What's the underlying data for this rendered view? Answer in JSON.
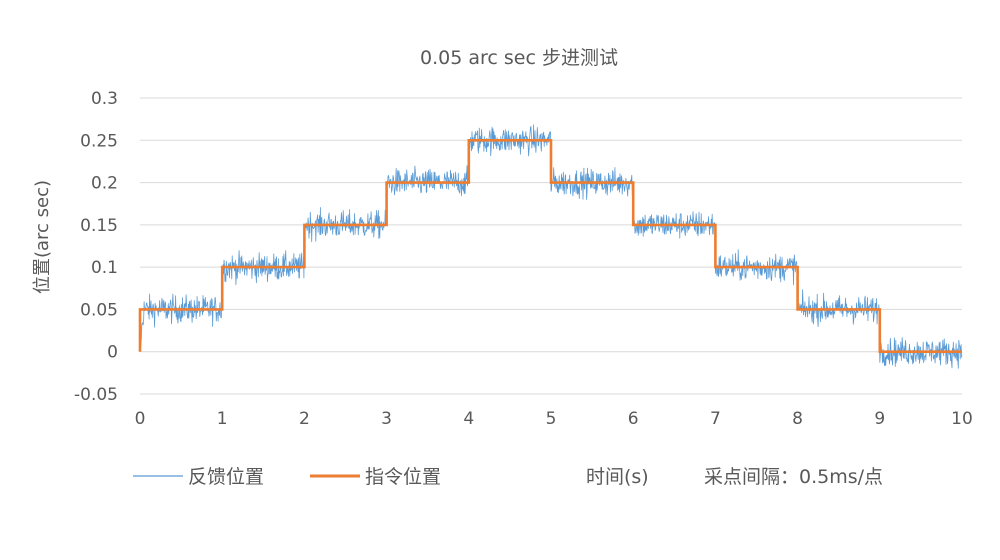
{
  "chart_data": {
    "type": "line",
    "title": "0.05 arc sec 步进测试",
    "xlabel": "",
    "ylabel": "位置(arc sec)",
    "xlim": [
      0,
      10
    ],
    "ylim": [
      -0.05,
      0.3
    ],
    "x_ticks": [
      "0",
      "1",
      "2",
      "3",
      "4",
      "5",
      "6",
      "7",
      "8",
      "9",
      "10"
    ],
    "y_ticks": [
      "0.3",
      "0.25",
      "0.2",
      "0.15",
      "0.1",
      "0.05",
      "0",
      "-0.05"
    ],
    "grid": true,
    "legend_position": "bottom",
    "series": [
      {
        "name": "反馈位置",
        "color": "#5B9BD5",
        "style": "noisy-line",
        "step_x": [
          0,
          1,
          2,
          3,
          4,
          5,
          6,
          7,
          8,
          9,
          10
        ],
        "step_levels": [
          0.05,
          0.1,
          0.15,
          0.2,
          0.25,
          0.2,
          0.15,
          0.1,
          0.05,
          0
        ],
        "noise_amplitude": 0.025
      },
      {
        "name": "指令位置",
        "color": "#ED7D31",
        "style": "step-line",
        "x": [
          0,
          0,
          1,
          1,
          2,
          2,
          3,
          3,
          4,
          4,
          5,
          5,
          6,
          6,
          7,
          7,
          8,
          8,
          9,
          9,
          10
        ],
        "values": [
          0,
          0.05,
          0.05,
          0.1,
          0.1,
          0.15,
          0.15,
          0.2,
          0.2,
          0.25,
          0.25,
          0.2,
          0.2,
          0.15,
          0.15,
          0.1,
          0.1,
          0.05,
          0.05,
          0,
          0
        ]
      }
    ],
    "annotations": [
      "时间(s)",
      "采点间隔：0.5ms/点"
    ]
  },
  "colors": {
    "grid": "#D9D9D9",
    "text": "#595959",
    "feedback": "#5B9BD5",
    "command": "#ED7D31"
  }
}
